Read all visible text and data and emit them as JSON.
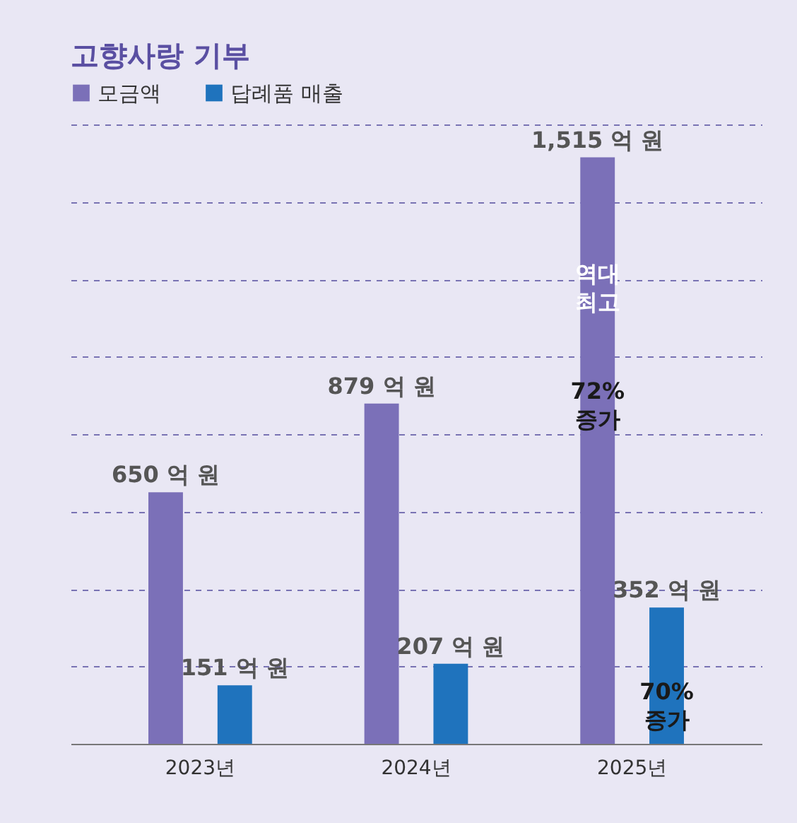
{
  "chart_data": {
    "type": "bar",
    "title": "고향사랑 기부",
    "categories": [
      "2023년",
      "2024년",
      "2025년"
    ],
    "series": [
      {
        "name": "모금액",
        "color": "#7b70b8",
        "values": [
          650,
          879,
          1515
        ],
        "value_labels": [
          "650 억 원",
          "879 억 원",
          "1,515 억 원"
        ]
      },
      {
        "name": "답례품 매출",
        "color": "#1f73bd",
        "values": [
          151,
          207,
          352
        ],
        "value_labels": [
          "151 억 원",
          "207 억 원",
          "352 억 원"
        ]
      }
    ],
    "ylim": [
      0,
      1600
    ],
    "yticks": [
      {
        "value": 200,
        "label": null
      },
      {
        "value": 400,
        "label": null
      },
      {
        "value": 600,
        "label": null
      },
      {
        "value": 800,
        "label": null
      },
      {
        "value": 1000,
        "label": null
      },
      {
        "value": 1200,
        "label": null
      },
      {
        "value": 1400,
        "label": null
      },
      {
        "value": 1600,
        "label": null
      }
    ],
    "grid": "y",
    "tick_labels": "x",
    "legend": "top left",
    "annotations": [
      "역대 최고",
      "72% 증가",
      "70% 증가"
    ]
  }
}
